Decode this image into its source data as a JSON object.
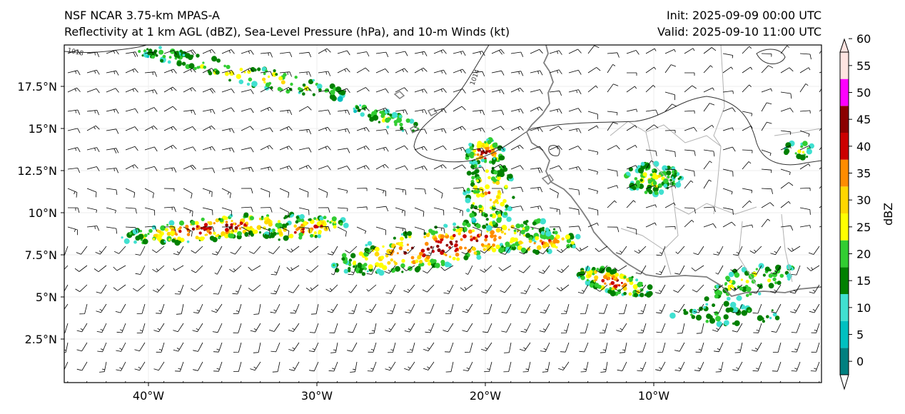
{
  "header": {
    "title_line1": "NSF NCAR 3.75-km MPAS-A",
    "title_line2": "Reflectivity at 1 km AGL (dBZ), Sea-Level Pressure (hPa), and 10-m Winds (kt)",
    "init": "Init: 2025-09-09 00:00 UTC",
    "valid": "Valid: 2025-09-10 11:00 UTC"
  },
  "map": {
    "lat_ticks": [
      "17.5°N",
      "15°N",
      "12.5°N",
      "10°N",
      "7.5°N",
      "5°N",
      "2.5°N"
    ],
    "lon_ticks": [
      "40°W",
      "30°W",
      "20°W",
      "10°W"
    ],
    "isobar_labels": [
      "1018",
      "1014"
    ]
  },
  "colorbar": {
    "label": "dBZ",
    "ticks": [
      "0",
      "5",
      "10",
      "15",
      "20",
      "25",
      "30",
      "35",
      "40",
      "45",
      "50",
      "55",
      "60"
    ],
    "colors": [
      "#008080",
      "#00c0c0",
      "#40e0d0",
      "#008000",
      "#32cd32",
      "#ffff00",
      "#ffd700",
      "#ff8c00",
      "#cc0000",
      "#8b0000",
      "#ff00ff",
      "#ffe4e1"
    ]
  },
  "colors": {
    "coast": "#7f7f7f",
    "border": "#b0b0b0",
    "isobar": "#333333",
    "barb": "#000000"
  }
}
